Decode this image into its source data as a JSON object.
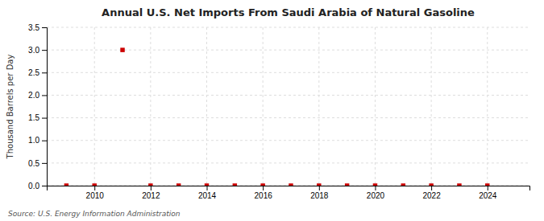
{
  "chart_data": {
    "type": "scatter",
    "title": "Annual U.S. Net Imports From Saudi Arabia of Natural Gasoline",
    "y_label": "Thousand Barrels per Day",
    "annotations": [
      "Source: U.S. Energy Information Administration"
    ],
    "x": [
      2009,
      2010,
      2011,
      2012,
      2013,
      2014,
      2015,
      2016,
      2017,
      2018,
      2019,
      2020,
      2021,
      2022,
      2023,
      2024
    ],
    "values": [
      0.0,
      0.0,
      3.0,
      0.0,
      0.0,
      0.0,
      0.0,
      0.0,
      0.0,
      0.0,
      0.0,
      0.0,
      0.0,
      0.0,
      0.0,
      0.0
    ],
    "color": "#cc0000",
    "marker": "square",
    "xlim": [
      2008.3,
      2025.5
    ],
    "xticks": [
      2010,
      2012,
      2014,
      2016,
      2018,
      2020,
      2022,
      2024
    ],
    "ylim": [
      0.0,
      3.5
    ],
    "yticks": [
      {
        "value": 0.0,
        "label": "0.0"
      },
      0.5,
      {
        "value": 1.0,
        "label": "1.0"
      },
      1.5,
      {
        "value": 2.0,
        "label": "2.0"
      },
      2.5,
      {
        "value": 3.0,
        "label": "3.0"
      },
      3.5
    ],
    "grid": true
  }
}
